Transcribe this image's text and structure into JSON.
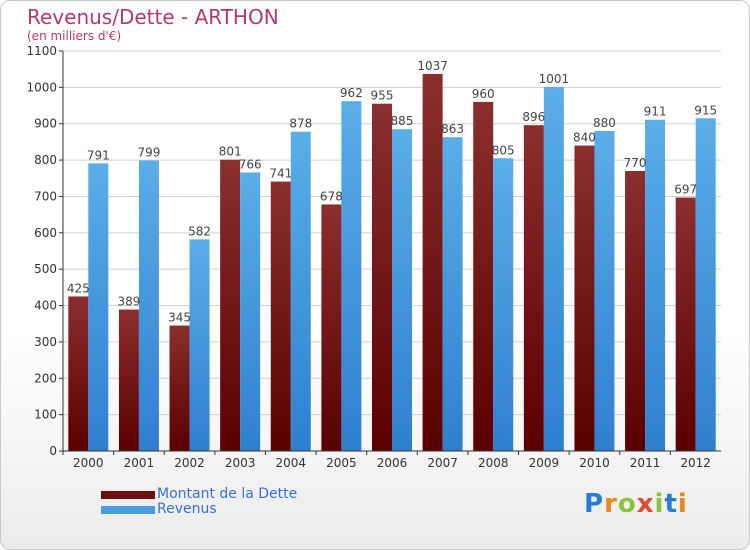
{
  "title": "Revenus/Dette - ARTHON",
  "subtitle": "(en milliers d'€)",
  "logo": {
    "text": "Proxiti",
    "letter_colors": [
      "#2b7bd6",
      "#e8871e",
      "#8bc53f",
      "#e0492c",
      "#8bc53f",
      "#2b7bd6",
      "#e8871e"
    ]
  },
  "legend": {
    "debt_label": "Montant de la Dette",
    "revenue_label": "Revenus"
  },
  "colors": {
    "debt_top": "#8a2e2e",
    "debt_bottom": "#5a0000",
    "revenue_top": "#5aaee8",
    "revenue_bottom": "#2f7fd0",
    "grid": "#d0d0d0",
    "axis": "#333333"
  },
  "chart_data": {
    "type": "bar",
    "categories": [
      "2000",
      "2001",
      "2002",
      "2003",
      "2004",
      "2005",
      "2006",
      "2007",
      "2008",
      "2009",
      "2010",
      "2011",
      "2012"
    ],
    "series": [
      {
        "name": "Montant de la Dette",
        "values": [
          425,
          389,
          345,
          801,
          741,
          678,
          955,
          1037,
          960,
          896,
          840,
          770,
          697
        ]
      },
      {
        "name": "Revenus",
        "values": [
          791,
          799,
          582,
          766,
          878,
          962,
          885,
          863,
          805,
          1001,
          880,
          911,
          915
        ]
      }
    ],
    "yticks": [
      0,
      100,
      200,
      300,
      400,
      500,
      600,
      700,
      800,
      900,
      1000,
      1100
    ],
    "ylim": [
      0,
      1100
    ],
    "grid": true,
    "legend_position": "bottom-left"
  }
}
